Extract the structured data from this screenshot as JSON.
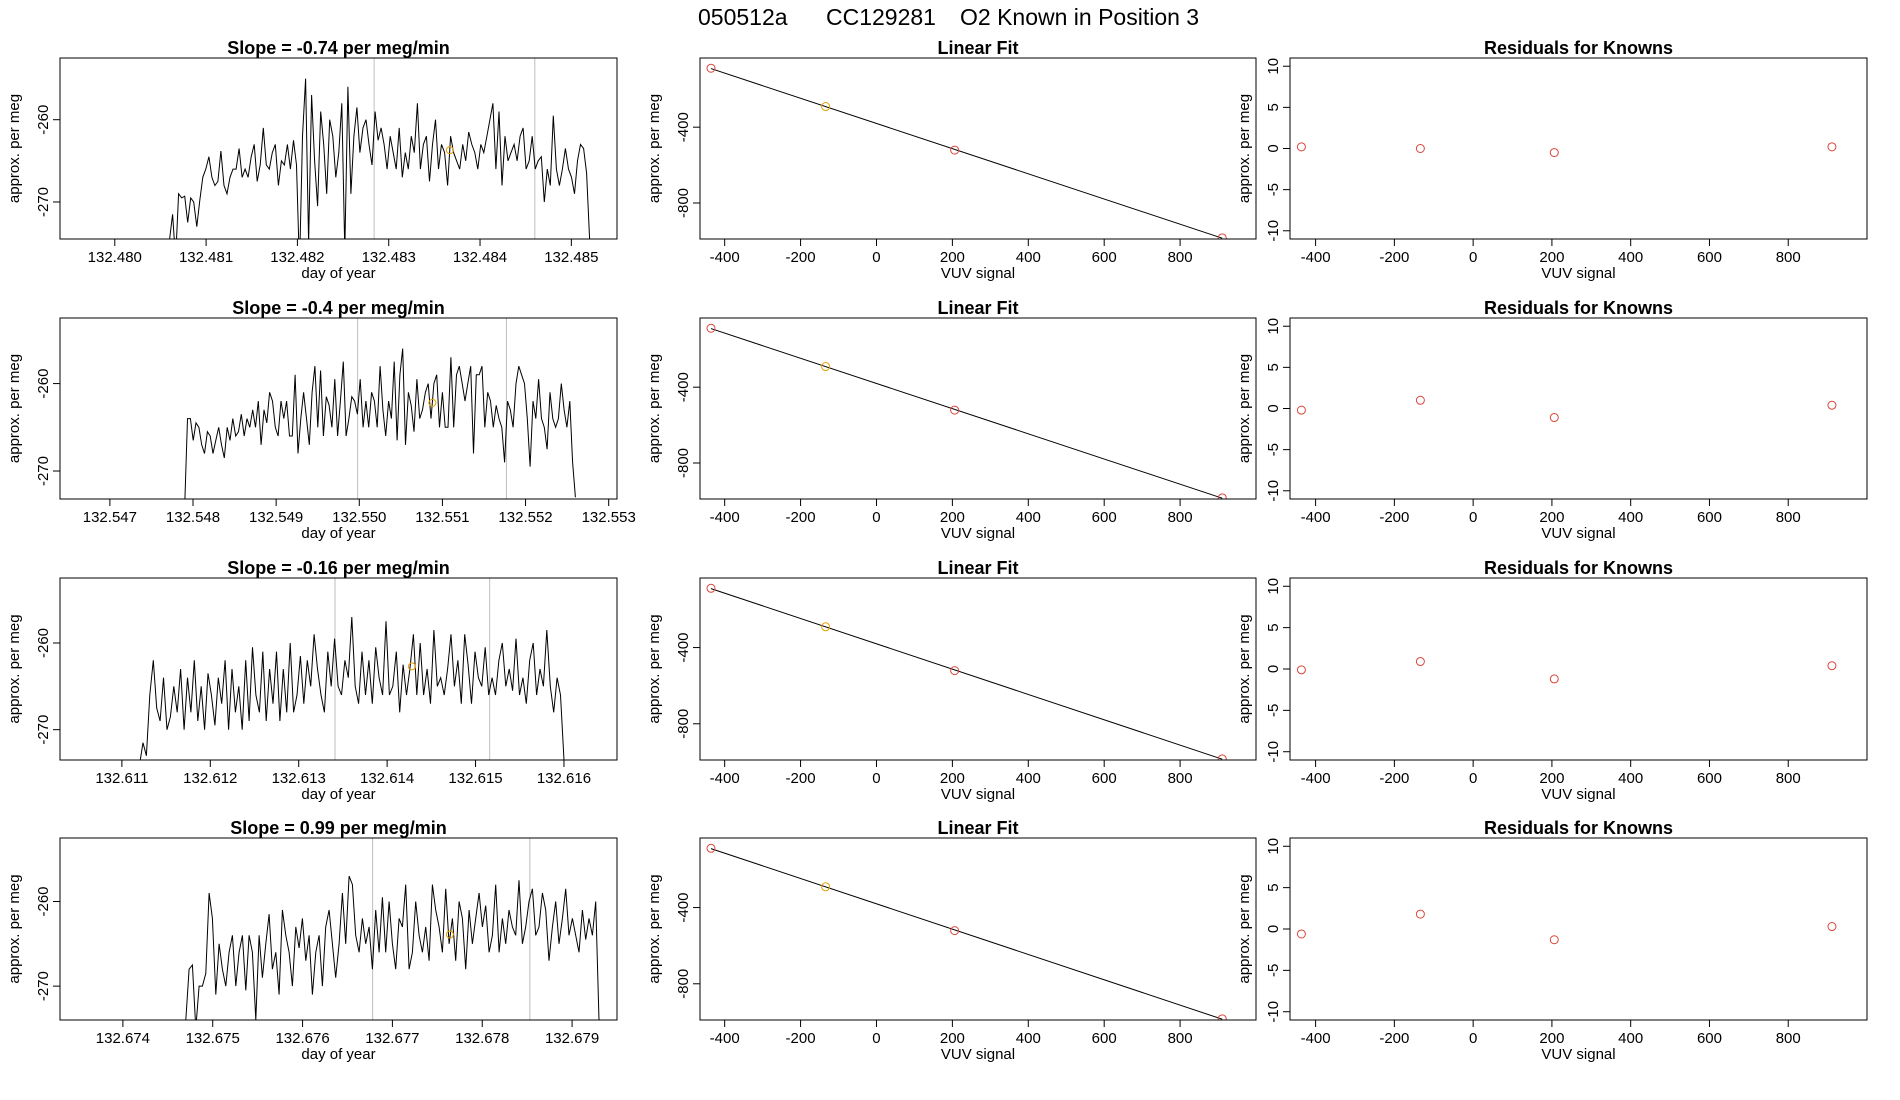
{
  "figure": {
    "run_id": "050512a",
    "cylinder": "CC129281",
    "known": "O2 Known in Position  3",
    "colors": {
      "trace": "#000000",
      "grid_line": "#bebebe",
      "point_orange": "#e69f00",
      "point_red": "#d9453a"
    }
  },
  "chart_data": [
    {
      "type": "line",
      "row": 1,
      "title": "Slope =  -0.74  per meg/min",
      "xlabel": "day of year",
      "ylabel": "approx. per meg",
      "xlim": [
        132.4794,
        132.4855
      ],
      "ylim": [
        -274.5,
        -252.5
      ],
      "xticks": [
        132.48,
        132.481,
        132.482,
        132.483,
        132.484,
        132.485
      ],
      "xtick_labels": [
        "132.480",
        "132.481",
        "132.482",
        "132.483",
        "132.484",
        "132.485"
      ],
      "yticks": [
        -260,
        -270
      ],
      "ytick_labels": [
        "-260",
        "-270"
      ],
      "vlines": [
        132.48284,
        132.4846
      ],
      "marker": {
        "x": 132.48367,
        "y": -263.7
      },
      "x_start": 132.4806,
      "x_end": 132.4852,
      "values": [
        -274.5,
        -271.5,
        -277,
        -269,
        -269.5,
        -269.3,
        -272.5,
        -269.5,
        -270,
        -273,
        -269.8,
        -267,
        -266,
        -264.5,
        -267,
        -268,
        -267.5,
        -263.8,
        -268,
        -269,
        -267,
        -266,
        -266,
        -263.5,
        -267,
        -266,
        -267,
        -264.5,
        -263,
        -267.5,
        -265.5,
        -261,
        -265.5,
        -266,
        -264,
        -263,
        -268,
        -265,
        -265.5,
        -263,
        -266,
        -262.5,
        -265.5,
        -278,
        -262,
        -255,
        -275,
        -257,
        -265,
        -270.5,
        -259,
        -263,
        -269,
        -260,
        -262,
        -267,
        -264,
        -258,
        -276,
        -256,
        -269,
        -262,
        -258.5,
        -264,
        -261,
        -260,
        -263,
        -265.5,
        -259,
        -262.5,
        -261,
        -263,
        -266,
        -262,
        -264,
        -266,
        -261,
        -267,
        -264,
        -266,
        -262,
        -264,
        -258,
        -266,
        -263,
        -262,
        -267.5,
        -263,
        -260,
        -266,
        -263,
        -264,
        -268,
        -262,
        -264,
        -265,
        -266,
        -263,
        -265,
        -261.5,
        -263,
        -264,
        -266,
        -263,
        -264,
        -262,
        -260,
        -258,
        -266,
        -259,
        -268,
        -262,
        -265,
        -264,
        -263,
        -265,
        -262,
        -261,
        -266,
        -265,
        -262,
        -266,
        -265,
        -264.5,
        -270,
        -266,
        -268,
        -259.5,
        -266,
        -268,
        -266,
        -263.5,
        -266,
        -267,
        -269,
        -265,
        -263,
        -263.5,
        -266.5,
        -274.5
      ]
    },
    {
      "type": "scatter_fit",
      "row": 1,
      "title": "Linear Fit",
      "xlabel": "VUV signal",
      "ylabel": "approx. per meg",
      "xlim": [
        -465,
        1000
      ],
      "ylim": [
        -990,
        -35
      ],
      "xticks": [
        -400,
        -200,
        0,
        200,
        400,
        600,
        800
      ],
      "xtick_labels": [
        "-400",
        "-200",
        "0",
        "200",
        "400",
        "600",
        "800"
      ],
      "yticks": [
        -400,
        -800
      ],
      "ytick_labels": [
        "-400",
        "-800"
      ],
      "x": [
        -436,
        -134,
        206,
        911
      ],
      "y": [
        -89,
        -291,
        -521,
        -984
      ]
    },
    {
      "type": "scatter",
      "row": 1,
      "title": "Residuals for Knowns",
      "xlabel": "VUV signal",
      "ylabel": "approx. per meg",
      "xlim": [
        -465,
        1000
      ],
      "ylim": [
        -11,
        11
      ],
      "xticks": [
        -400,
        -200,
        0,
        200,
        400,
        600,
        800
      ],
      "xtick_labels": [
        "-400",
        "-200",
        "0",
        "200",
        "400",
        "600",
        "800"
      ],
      "yticks": [
        10,
        5,
        0,
        -5,
        -10
      ],
      "ytick_labels": [
        "10",
        "5",
        "0",
        "-5",
        "-10"
      ],
      "x": [
        -436,
        -134,
        206,
        911
      ],
      "y": [
        0.2,
        0.0,
        -0.5,
        0.2
      ]
    },
    {
      "type": "line",
      "row": 2,
      "title": "Slope =  -0.4  per meg/min",
      "xlabel": "day of year",
      "ylabel": "approx. per meg",
      "xlim": [
        132.5464,
        132.5531
      ],
      "ylim": [
        -273.2,
        -252.5
      ],
      "xticks": [
        132.547,
        132.548,
        132.549,
        132.55,
        132.551,
        132.552,
        132.553
      ],
      "xtick_labels": [
        "132.547",
        "132.548",
        "132.549",
        "132.550",
        "132.551",
        "132.552",
        "132.553"
      ],
      "yticks": [
        -260,
        -270
      ],
      "ytick_labels": [
        "-260",
        "-270"
      ],
      "vlines": [
        132.54998,
        132.55177
      ],
      "marker": {
        "x": 132.55088,
        "y": -262.2
      },
      "x_start": 132.5479,
      "x_end": 132.5526,
      "values": [
        -274,
        -264,
        -264,
        -266.5,
        -264.5,
        -265,
        -267,
        -268,
        -265.5,
        -266,
        -268,
        -266.5,
        -265,
        -267,
        -268.5,
        -265,
        -266.5,
        -264,
        -266,
        -265.5,
        -263.5,
        -266,
        -264,
        -265,
        -263,
        -265,
        -262,
        -267,
        -263,
        -264.5,
        -261,
        -262,
        -265,
        -266,
        -262,
        -264,
        -262,
        -266,
        -266,
        -259,
        -268,
        -264,
        -261,
        -264,
        -267,
        -261,
        -258,
        -265,
        -258.5,
        -266,
        -261.5,
        -262.5,
        -265,
        -259.5,
        -266,
        -262,
        -257.5,
        -266,
        -264,
        -261.5,
        -262,
        -263.5,
        -259.5,
        -265,
        -262,
        -265,
        -261,
        -262,
        -265,
        -258,
        -263,
        -266,
        -262,
        -264,
        -257.5,
        -266.5,
        -259,
        -256,
        -267,
        -261,
        -262.5,
        -265.5,
        -259.5,
        -264,
        -263,
        -261,
        -260,
        -264,
        -260,
        -259,
        -265,
        -261,
        -265,
        -265,
        -257,
        -265,
        -259,
        -258,
        -260,
        -262,
        -260,
        -258,
        -268,
        -259,
        -259,
        -258,
        -265,
        -261,
        -262,
        -265,
        -262.5,
        -264,
        -265,
        -269,
        -262,
        -263,
        -265,
        -260,
        -258,
        -259,
        -260,
        -264,
        -269.5,
        -262,
        -264,
        -259.5,
        -264,
        -265,
        -267.5,
        -261,
        -264,
        -265,
        -264,
        -260,
        -263,
        -265,
        -262,
        -269,
        -273
      ]
    },
    {
      "type": "scatter_fit",
      "row": 2,
      "title": "Linear Fit",
      "xlabel": "VUV signal",
      "ylabel": "approx. per meg",
      "xlim": [
        -465,
        1000
      ],
      "ylim": [
        -990,
        -35
      ],
      "xticks": [
        -400,
        -200,
        0,
        200,
        400,
        600,
        800
      ],
      "xtick_labels": [
        "-400",
        "-200",
        "0",
        "200",
        "400",
        "600",
        "800"
      ],
      "yticks": [
        -400,
        -800
      ],
      "ytick_labels": [
        "-400",
        "-800"
      ],
      "x": [
        -436,
        -134,
        206,
        911
      ],
      "y": [
        -89,
        -291,
        -521,
        -984
      ]
    },
    {
      "type": "scatter",
      "row": 2,
      "title": "Residuals for Knowns",
      "xlabel": "VUV signal",
      "ylabel": "approx. per meg",
      "xlim": [
        -465,
        1000
      ],
      "ylim": [
        -11,
        11
      ],
      "xticks": [
        -400,
        -200,
        0,
        200,
        400,
        600,
        800
      ],
      "xtick_labels": [
        "-400",
        "-200",
        "0",
        "200",
        "400",
        "600",
        "800"
      ],
      "yticks": [
        10,
        5,
        0,
        -5,
        -10
      ],
      "ytick_labels": [
        "10",
        "5",
        "0",
        "-5",
        "-10"
      ],
      "x": [
        -436,
        -134,
        206,
        911
      ],
      "y": [
        -0.2,
        1.0,
        -1.1,
        0.4
      ]
    },
    {
      "type": "line",
      "row": 3,
      "title": "Slope =  -0.16  per meg/min",
      "xlabel": "day of year",
      "ylabel": "approx. per meg",
      "xlim": [
        132.6103,
        132.6166
      ],
      "ylim": [
        -273.5,
        -252.5
      ],
      "xticks": [
        132.611,
        132.612,
        132.613,
        132.614,
        132.615,
        132.616
      ],
      "xtick_labels": [
        "132.611",
        "132.612",
        "132.613",
        "132.614",
        "132.615",
        "132.616"
      ],
      "yticks": [
        -260,
        -270
      ],
      "ytick_labels": [
        "-260",
        "-270"
      ],
      "vlines": [
        132.61341,
        132.61516
      ],
      "marker": {
        "x": 132.61428,
        "y": -262.7
      },
      "x_start": 132.6112,
      "x_end": 132.616,
      "values": [
        -274,
        -271.5,
        -273,
        -266,
        -262,
        -267.5,
        -269,
        -264,
        -270,
        -268.5,
        -265,
        -268,
        -263,
        -270,
        -264,
        -268,
        -262,
        -269,
        -265,
        -270,
        -263.5,
        -266,
        -269.5,
        -264,
        -267,
        -262,
        -270,
        -263,
        -268,
        -265,
        -270,
        -262,
        -269,
        -260.5,
        -266,
        -268,
        -261,
        -269,
        -263,
        -267,
        -261,
        -269,
        -263,
        -268,
        -260,
        -268,
        -266,
        -261.5,
        -267,
        -262,
        -265,
        -259,
        -263,
        -266,
        -268,
        -261,
        -265,
        -259.5,
        -265,
        -266,
        -262,
        -264,
        -257,
        -265,
        -267,
        -261,
        -266,
        -262,
        -267,
        -260.5,
        -264,
        -266,
        -257.5,
        -266,
        -265,
        -261,
        -268,
        -262.5,
        -266,
        -263,
        -259,
        -266,
        -260,
        -266,
        -263,
        -267,
        -258.5,
        -265,
        -264,
        -266,
        -263,
        -259,
        -265,
        -262,
        -267,
        -259,
        -262.5,
        -267,
        -261,
        -264,
        -265,
        -260.5,
        -266,
        -264,
        -266,
        -262,
        -260,
        -265,
        -263,
        -265.5,
        -259.5,
        -266,
        -264,
        -267,
        -262,
        -260,
        -266,
        -263,
        -265,
        -258.5,
        -265,
        -268,
        -264,
        -266,
        -273.5
      ]
    },
    {
      "type": "scatter_fit",
      "row": 3,
      "title": "Linear Fit",
      "xlabel": "VUV signal",
      "ylabel": "approx. per meg",
      "xlim": [
        -465,
        1000
      ],
      "ylim": [
        -990,
        -35
      ],
      "xticks": [
        -400,
        -200,
        0,
        200,
        400,
        600,
        800
      ],
      "xtick_labels": [
        "-400",
        "-200",
        "0",
        "200",
        "400",
        "600",
        "800"
      ],
      "yticks": [
        -400,
        -800
      ],
      "ytick_labels": [
        "-400",
        "-800"
      ],
      "x": [
        -436,
        -134,
        206,
        911
      ],
      "y": [
        -89,
        -291,
        -521,
        -984
      ]
    },
    {
      "type": "scatter",
      "row": 3,
      "title": "Residuals for Knowns",
      "xlabel": "VUV signal",
      "ylabel": "approx. per meg",
      "xlim": [
        -465,
        1000
      ],
      "ylim": [
        -11,
        11
      ],
      "xticks": [
        -400,
        -200,
        0,
        200,
        400,
        600,
        800
      ],
      "xtick_labels": [
        "-400",
        "-200",
        "0",
        "200",
        "400",
        "600",
        "800"
      ],
      "yticks": [
        10,
        5,
        0,
        -5,
        -10
      ],
      "ytick_labels": [
        "10",
        "5",
        "0",
        "-5",
        "-10"
      ],
      "x": [
        -436,
        -134,
        206,
        911
      ],
      "y": [
        -0.1,
        0.9,
        -1.2,
        0.4
      ]
    },
    {
      "type": "line",
      "row": 4,
      "title": "Slope =  0.99  per meg/min",
      "xlabel": "day of year",
      "ylabel": "approx. per meg",
      "xlim": [
        132.6733,
        132.6795
      ],
      "ylim": [
        -274,
        -252.5
      ],
      "xticks": [
        132.674,
        132.675,
        132.676,
        132.677,
        132.678,
        132.679
      ],
      "xtick_labels": [
        "132.674",
        "132.675",
        "132.676",
        "132.677",
        "132.678",
        "132.679"
      ],
      "yticks": [
        -260,
        -270
      ],
      "ytick_labels": [
        "-260",
        "-270"
      ],
      "vlines": [
        132.67678,
        132.67853
      ],
      "marker": {
        "x": 132.67764,
        "y": -263.9
      },
      "x_start": 132.6747,
      "x_end": 132.6793,
      "values": [
        -274,
        -268,
        -267.5,
        -275,
        -270,
        -270,
        -268.5,
        -259,
        -262,
        -271,
        -265,
        -268,
        -270,
        -266,
        -264,
        -270,
        -266,
        -264,
        -270.5,
        -264,
        -266,
        -274,
        -264,
        -269,
        -265,
        -261.5,
        -268,
        -266,
        -271,
        -261,
        -264,
        -266,
        -270,
        -263,
        -265.5,
        -262,
        -267,
        -264,
        -271,
        -266,
        -264,
        -270,
        -263,
        -261,
        -265,
        -269,
        -265,
        -259,
        -265,
        -257,
        -258,
        -264,
        -266,
        -262,
        -265,
        -263,
        -268,
        -261,
        -266,
        -259.5,
        -266,
        -260,
        -265,
        -268,
        -262,
        -263,
        -258,
        -268,
        -266,
        -260,
        -264,
        -266,
        -263,
        -267,
        -258,
        -261,
        -263,
        -266,
        -258.5,
        -265,
        -262,
        -267,
        -260,
        -262,
        -268,
        -261,
        -265,
        -262,
        -259,
        -263,
        -260.5,
        -266,
        -264,
        -258,
        -266,
        -262,
        -265,
        -261,
        -263,
        -264,
        -257.5,
        -265,
        -263,
        -260,
        -258.5,
        -264,
        -263,
        -259,
        -261,
        -267,
        -263,
        -260,
        -265,
        -262,
        -258.5,
        -264,
        -262,
        -264,
        -266,
        -261,
        -264.5,
        -262,
        -264,
        -260,
        -274
      ]
    },
    {
      "type": "scatter_fit",
      "row": 4,
      "title": "Linear Fit",
      "xlabel": "VUV signal",
      "ylabel": "approx. per meg",
      "xlim": [
        -465,
        1000
      ],
      "ylim": [
        -990,
        -35
      ],
      "xticks": [
        -400,
        -200,
        0,
        200,
        400,
        600,
        800
      ],
      "xtick_labels": [
        "-400",
        "-200",
        "0",
        "200",
        "400",
        "600",
        "800"
      ],
      "yticks": [
        -400,
        -800
      ],
      "ytick_labels": [
        "-400",
        "-800"
      ],
      "x": [
        -436,
        -134,
        206,
        911
      ],
      "y": [
        -89,
        -291,
        -521,
        -984
      ]
    },
    {
      "type": "scatter",
      "row": 4,
      "title": "Residuals for Knowns",
      "xlabel": "VUV signal",
      "ylabel": "approx. per meg",
      "xlim": [
        -465,
        1000
      ],
      "ylim": [
        -11,
        11
      ],
      "xticks": [
        -400,
        -200,
        0,
        200,
        400,
        600,
        800
      ],
      "xtick_labels": [
        "-400",
        "-200",
        "0",
        "200",
        "400",
        "600",
        "800"
      ],
      "yticks": [
        10,
        5,
        0,
        -5,
        -10
      ],
      "ytick_labels": [
        "10",
        "5",
        "0",
        "-5",
        "-10"
      ],
      "x": [
        -436,
        -134,
        206,
        911
      ],
      "y": [
        -0.6,
        1.8,
        -1.3,
        0.3
      ]
    }
  ]
}
